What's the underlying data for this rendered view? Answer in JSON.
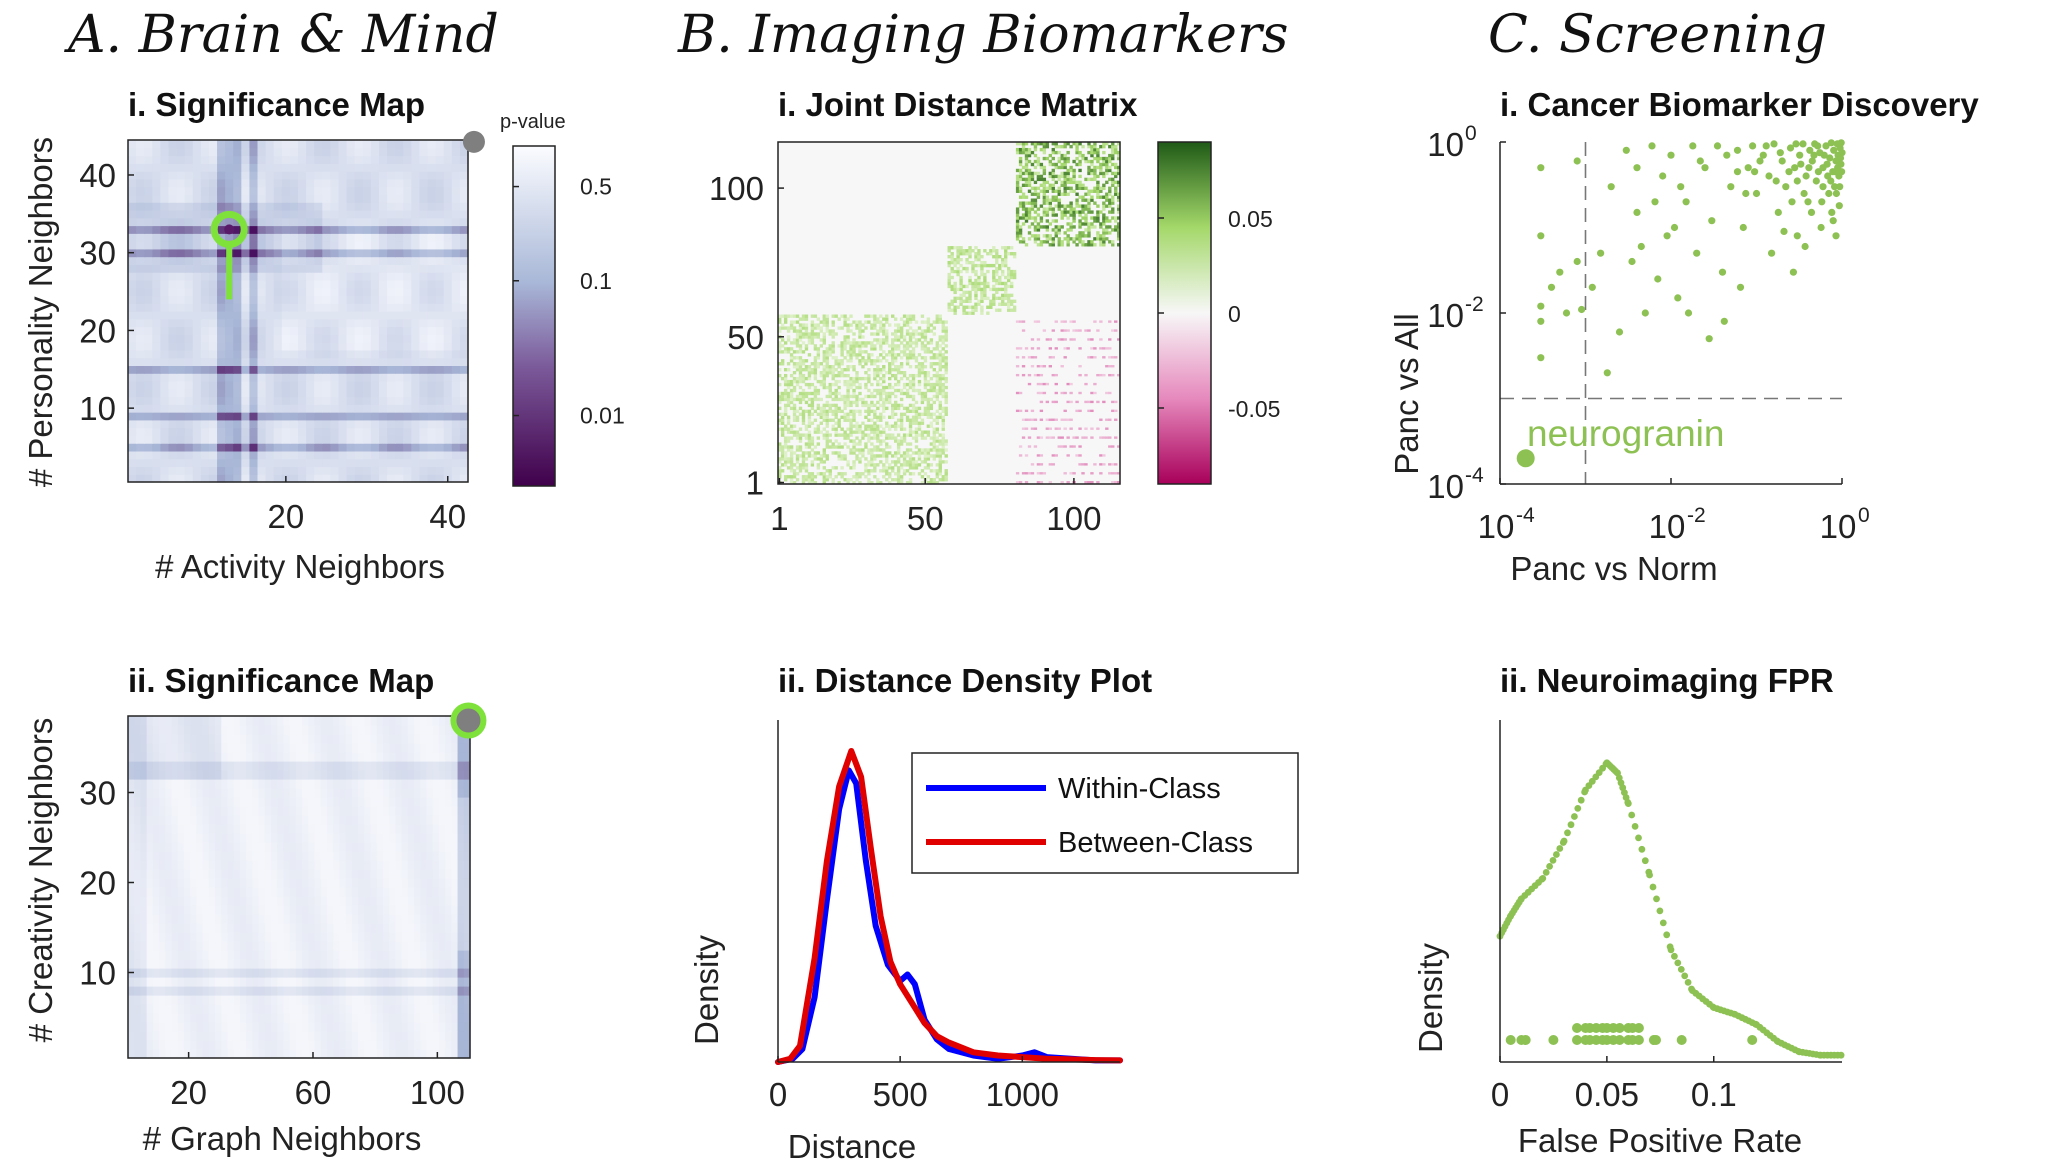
{
  "sections": {
    "a": "A. Brain & Mind",
    "b": "B. Imaging Biomarkers",
    "c": "C. Screening"
  },
  "colors": {
    "green": "#8dc153",
    "bright_green": "#7fe23a",
    "purple_dark": "#40004b",
    "purple_mid": "#8d6aa8",
    "lavender": "#d8dff0",
    "blue": "#0000ff",
    "red": "#e00000",
    "marker_gray": "#7f7f7f",
    "dark_green": "#1f5a17",
    "magenta": "#9a0f5a"
  },
  "chart_data": [
    {
      "id": "A-i",
      "type": "heatmap",
      "title": "i. Significance Map",
      "xlabel": "# Activity Neighbors",
      "ylabel": "# Personality Neighbors",
      "xlim": [
        1,
        42
      ],
      "ylim": [
        1,
        44
      ],
      "xticks": [
        20,
        40
      ],
      "yticks": [
        10,
        20,
        30,
        40
      ],
      "colorbar": {
        "title": "p-value",
        "scale": "log",
        "range": [
          0.003,
          1
        ],
        "ticks": [
          "0.5",
          "0.1",
          "0.01"
        ],
        "tick_values": [
          0.5,
          0.1,
          0.01
        ]
      },
      "highlight_rows": [
        33,
        30,
        15,
        9,
        5
      ],
      "highlight_cols": [
        12,
        13,
        14,
        16
      ],
      "markers": [
        {
          "kind": "gray-dot",
          "x": 42,
          "y": 44
        },
        {
          "kind": "green-pin",
          "x": 13,
          "y": 33,
          "stem_to_y": 24
        }
      ]
    },
    {
      "id": "A-ii",
      "type": "heatmap",
      "title": "ii. Significance Map",
      "xlabel": "# Graph Neighbors",
      "ylabel": "# Creativity Neighbors",
      "xlim": [
        1,
        110
      ],
      "ylim": [
        1,
        38
      ],
      "xticks": [
        20,
        60,
        100
      ],
      "yticks": [
        10,
        20,
        30
      ],
      "highlight_rows": [
        33,
        32,
        10,
        8
      ],
      "markers": [
        {
          "kind": "gray-dot-green-ring",
          "x": 110,
          "y": 38
        }
      ]
    },
    {
      "id": "B-i",
      "type": "heatmap",
      "title": "i. Joint Distance Matrix",
      "xlim": [
        1,
        115
      ],
      "ylim": [
        1,
        115
      ],
      "xticks": [
        1,
        50,
        100
      ],
      "yticks": [
        1,
        50,
        100
      ],
      "blocks": [
        {
          "range": [
            1,
            57
          ],
          "sign": "positive",
          "strength": 0.4
        },
        {
          "range": [
            58,
            80
          ],
          "sign": "positive",
          "strength": 0.45
        },
        {
          "range": [
            81,
            115
          ],
          "sign": "positive",
          "strength": 0.85
        }
      ],
      "negative_region": {
        "cols": [
          81,
          115
        ],
        "rows": [
          1,
          57
        ]
      },
      "colorbar": {
        "range": [
          -0.09,
          0.09
        ],
        "ticks": [
          "0.05",
          "0",
          "-0.05"
        ],
        "tick_values": [
          0.05,
          0,
          -0.05
        ]
      }
    },
    {
      "id": "B-ii",
      "type": "line",
      "title": "ii. Distance Density Plot",
      "xlabel": "Distance",
      "ylabel": "Density",
      "xlim": [
        0,
        1400
      ],
      "ylim": [
        0,
        1.0
      ],
      "xticks": [
        0,
        500,
        1000
      ],
      "legend_position": "top-right",
      "series": [
        {
          "name": "Within-Class",
          "color": "#0000ff",
          "points": [
            [
              0,
              0.0
            ],
            [
              60,
              0.01
            ],
            [
              100,
              0.04
            ],
            [
              150,
              0.2
            ],
            [
              200,
              0.5
            ],
            [
              250,
              0.78
            ],
            [
              290,
              0.9
            ],
            [
              320,
              0.86
            ],
            [
              360,
              0.62
            ],
            [
              400,
              0.42
            ],
            [
              450,
              0.3
            ],
            [
              500,
              0.25
            ],
            [
              530,
              0.27
            ],
            [
              560,
              0.24
            ],
            [
              600,
              0.13
            ],
            [
              650,
              0.07
            ],
            [
              700,
              0.04
            ],
            [
              800,
              0.02
            ],
            [
              900,
              0.01
            ],
            [
              1000,
              0.02
            ],
            [
              1050,
              0.03
            ],
            [
              1100,
              0.015
            ],
            [
              1200,
              0.01
            ],
            [
              1300,
              0.005
            ],
            [
              1400,
              0.005
            ]
          ]
        },
        {
          "name": "Between-Class",
          "color": "#e00000",
          "points": [
            [
              0,
              0.0
            ],
            [
              50,
              0.01
            ],
            [
              90,
              0.05
            ],
            [
              150,
              0.32
            ],
            [
              200,
              0.62
            ],
            [
              250,
              0.85
            ],
            [
              300,
              0.96
            ],
            [
              340,
              0.88
            ],
            [
              380,
              0.66
            ],
            [
              420,
              0.45
            ],
            [
              460,
              0.31
            ],
            [
              500,
              0.24
            ],
            [
              550,
              0.18
            ],
            [
              600,
              0.12
            ],
            [
              650,
              0.08
            ],
            [
              700,
              0.06
            ],
            [
              800,
              0.03
            ],
            [
              900,
              0.02
            ],
            [
              1000,
              0.015
            ],
            [
              1100,
              0.01
            ],
            [
              1200,
              0.008
            ],
            [
              1300,
              0.006
            ],
            [
              1400,
              0.005
            ]
          ]
        }
      ]
    },
    {
      "id": "C-i",
      "type": "scatter",
      "title": "i. Cancer Biomarker Discovery",
      "xlabel": "Panc vs Norm",
      "ylabel": "Panc vs All",
      "xscale": "log",
      "yscale": "log",
      "xlim": [
        0.0001,
        1
      ],
      "ylim": [
        0.0001,
        1
      ],
      "xtick_labels": [
        "10",
        "10",
        "10"
      ],
      "xtick_exponents": [
        "-4",
        "-2",
        "0"
      ],
      "xtick_values": [
        0.0001,
        0.01,
        1
      ],
      "ytick_labels": [
        "10",
        "10",
        "10"
      ],
      "ytick_exponents": [
        "0",
        "-2",
        "-4"
      ],
      "ytick_values": [
        1,
        0.01,
        0.0001
      ],
      "threshold_lines": {
        "x": 0.001,
        "y": 0.001
      },
      "annotation": {
        "text": "neurogranin",
        "x": 0.0002,
        "y": 0.0002
      },
      "points": [
        [
          0.0002,
          0.0002
        ],
        [
          0.0003,
          0.5
        ],
        [
          0.0003,
          0.08
        ],
        [
          0.0003,
          0.012
        ],
        [
          0.0003,
          0.008
        ],
        [
          0.0003,
          0.003
        ],
        [
          0.0004,
          0.02
        ],
        [
          0.0005,
          0.03
        ],
        [
          0.0006,
          0.01
        ],
        [
          0.0008,
          0.04
        ],
        [
          0.0008,
          0.6
        ],
        [
          0.0009,
          0.011
        ],
        [
          0.0012,
          0.02
        ],
        [
          0.0015,
          0.05
        ],
        [
          0.0018,
          0.002
        ],
        [
          0.002,
          0.3
        ],
        [
          0.0025,
          0.006
        ],
        [
          0.003,
          0.8
        ],
        [
          0.0035,
          0.04
        ],
        [
          0.004,
          0.15
        ],
        [
          0.005,
          0.01
        ],
        [
          0.006,
          0.9
        ],
        [
          0.007,
          0.025
        ],
        [
          0.008,
          0.4
        ],
        [
          0.009,
          0.08
        ],
        [
          0.01,
          0.7
        ],
        [
          0.012,
          0.015
        ],
        [
          0.015,
          0.2
        ],
        [
          0.018,
          0.9
        ],
        [
          0.02,
          0.05
        ],
        [
          0.025,
          0.5
        ],
        [
          0.03,
          0.12
        ],
        [
          0.035,
          0.9
        ],
        [
          0.04,
          0.03
        ],
        [
          0.05,
          0.3
        ],
        [
          0.06,
          0.8
        ],
        [
          0.07,
          0.1
        ],
        [
          0.08,
          0.5
        ],
        [
          0.09,
          0.9
        ],
        [
          0.1,
          0.25
        ],
        [
          0.12,
          0.7
        ],
        [
          0.14,
          0.4
        ],
        [
          0.16,
          0.95
        ],
        [
          0.18,
          0.15
        ],
        [
          0.2,
          0.6
        ],
        [
          0.22,
          0.3
        ],
        [
          0.25,
          0.85
        ],
        [
          0.28,
          0.5
        ],
        [
          0.3,
          0.08
        ],
        [
          0.32,
          0.7
        ],
        [
          0.35,
          0.95
        ],
        [
          0.38,
          0.4
        ],
        [
          0.4,
          0.2
        ],
        [
          0.42,
          0.8
        ],
        [
          0.45,
          0.6
        ],
        [
          0.48,
          0.95
        ],
        [
          0.5,
          0.35
        ],
        [
          0.55,
          0.75
        ],
        [
          0.6,
          0.5
        ],
        [
          0.65,
          0.9
        ],
        [
          0.7,
          0.25
        ],
        [
          0.72,
          0.65
        ],
        [
          0.75,
          0.98
        ],
        [
          0.78,
          0.45
        ],
        [
          0.8,
          0.8
        ],
        [
          0.82,
          0.3
        ],
        [
          0.85,
          0.6
        ],
        [
          0.88,
          0.95
        ],
        [
          0.9,
          0.7
        ],
        [
          0.92,
          0.4
        ],
        [
          0.95,
          0.85
        ],
        [
          0.97,
          0.55
        ],
        [
          0.98,
          0.98
        ],
        [
          1.0,
          0.75
        ],
        [
          0.06,
          0.45
        ],
        [
          0.11,
          0.6
        ],
        [
          0.17,
          0.35
        ],
        [
          0.26,
          0.2
        ],
        [
          0.33,
          0.55
        ],
        [
          0.44,
          0.15
        ],
        [
          0.52,
          0.9
        ],
        [
          0.58,
          0.2
        ],
        [
          0.68,
          0.4
        ],
        [
          0.76,
          0.15
        ],
        [
          0.86,
          0.25
        ],
        [
          0.94,
          0.3
        ],
        [
          0.99,
          0.45
        ],
        [
          0.013,
          0.3
        ],
        [
          0.022,
          0.6
        ],
        [
          0.045,
          0.7
        ],
        [
          0.075,
          0.25
        ],
        [
          0.095,
          0.45
        ],
        [
          0.13,
          0.9
        ],
        [
          0.19,
          0.75
        ],
        [
          0.24,
          0.45
        ],
        [
          0.29,
          0.95
        ],
        [
          0.36,
          0.25
        ],
        [
          0.41,
          0.5
        ],
        [
          0.47,
          0.7
        ],
        [
          0.53,
          0.45
        ],
        [
          0.62,
          0.7
        ],
        [
          0.67,
          0.55
        ],
        [
          0.74,
          0.35
        ],
        [
          0.83,
          0.45
        ],
        [
          0.89,
          0.5
        ],
        [
          0.96,
          0.65
        ],
        [
          0.004,
          0.5
        ],
        [
          0.0065,
          0.2
        ],
        [
          0.0045,
          0.06
        ],
        [
          0.016,
          0.01
        ],
        [
          0.028,
          0.005
        ],
        [
          0.011,
          0.1
        ],
        [
          0.042,
          0.008
        ],
        [
          0.065,
          0.02
        ],
        [
          0.15,
          0.05
        ],
        [
          0.21,
          0.09
        ],
        [
          0.27,
          0.03
        ],
        [
          0.37,
          0.06
        ],
        [
          0.57,
          0.1
        ],
        [
          0.79,
          0.12
        ],
        [
          0.93,
          0.18
        ],
        [
          0.85,
          0.08
        ],
        [
          0.6,
          0.3
        ],
        [
          0.3,
          0.35
        ]
      ]
    },
    {
      "id": "C-ii",
      "type": "line",
      "title": "ii. Neuroimaging FPR",
      "xlabel": "False Positive Rate",
      "ylabel": "Density",
      "xlim": [
        0,
        0.16
      ],
      "ylim": [
        0,
        1.0
      ],
      "xtick_labels": [
        "0",
        "0.05",
        "0.1"
      ],
      "xtick_values": [
        0,
        0.05,
        0.1
      ],
      "series": [
        {
          "name": "",
          "color": "#8dc153",
          "points": [
            [
              0,
              0.37
            ],
            [
              0.005,
              0.43
            ],
            [
              0.01,
              0.48
            ],
            [
              0.02,
              0.54
            ],
            [
              0.03,
              0.65
            ],
            [
              0.04,
              0.8
            ],
            [
              0.05,
              0.88
            ],
            [
              0.055,
              0.85
            ],
            [
              0.06,
              0.76
            ],
            [
              0.07,
              0.55
            ],
            [
              0.08,
              0.33
            ],
            [
              0.09,
              0.21
            ],
            [
              0.1,
              0.16
            ],
            [
              0.11,
              0.14
            ],
            [
              0.12,
              0.11
            ],
            [
              0.13,
              0.06
            ],
            [
              0.14,
              0.03
            ],
            [
              0.15,
              0.02
            ],
            [
              0.16,
              0.02
            ]
          ]
        }
      ],
      "rug": [
        0.005,
        0.01,
        0.012,
        0.025,
        0.036,
        0.04,
        0.042,
        0.045,
        0.048,
        0.05,
        0.053,
        0.056,
        0.06,
        0.062,
        0.065,
        0.072,
        0.073,
        0.085,
        0.118
      ]
    }
  ],
  "legend": {
    "within": "Within-Class",
    "between": "Between-Class"
  }
}
